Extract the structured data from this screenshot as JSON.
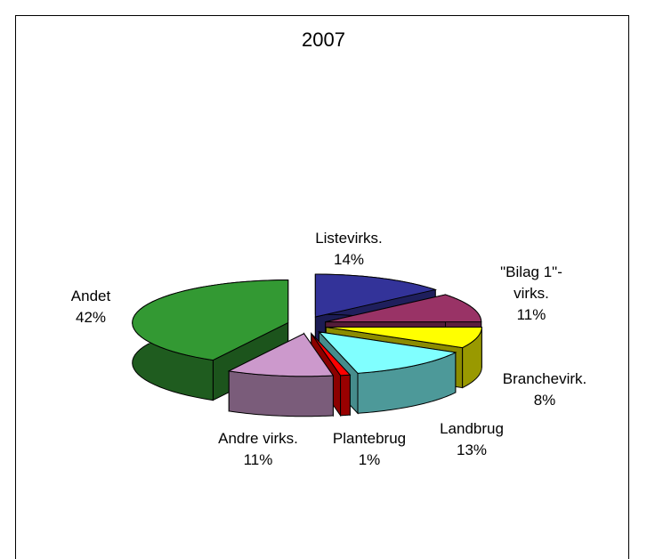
{
  "chart_data": {
    "type": "pie3d",
    "title": "2007",
    "categories": [
      "Listevirks.",
      "\"Bilag 1\"-virks.",
      "Branchevirk.",
      "Landbrug",
      "Plantebrug",
      "Andre virks.",
      "Andet"
    ],
    "values": [
      14,
      11,
      8,
      13,
      1,
      11,
      42
    ],
    "value_labels": [
      "14%",
      "11%",
      "8%",
      "13%",
      "1%",
      "11%",
      "42%"
    ],
    "colors": [
      "#333399",
      "#993366",
      "#ffff00",
      "#80ffff",
      "#ff0000",
      "#cc99cc",
      "#339933"
    ]
  }
}
